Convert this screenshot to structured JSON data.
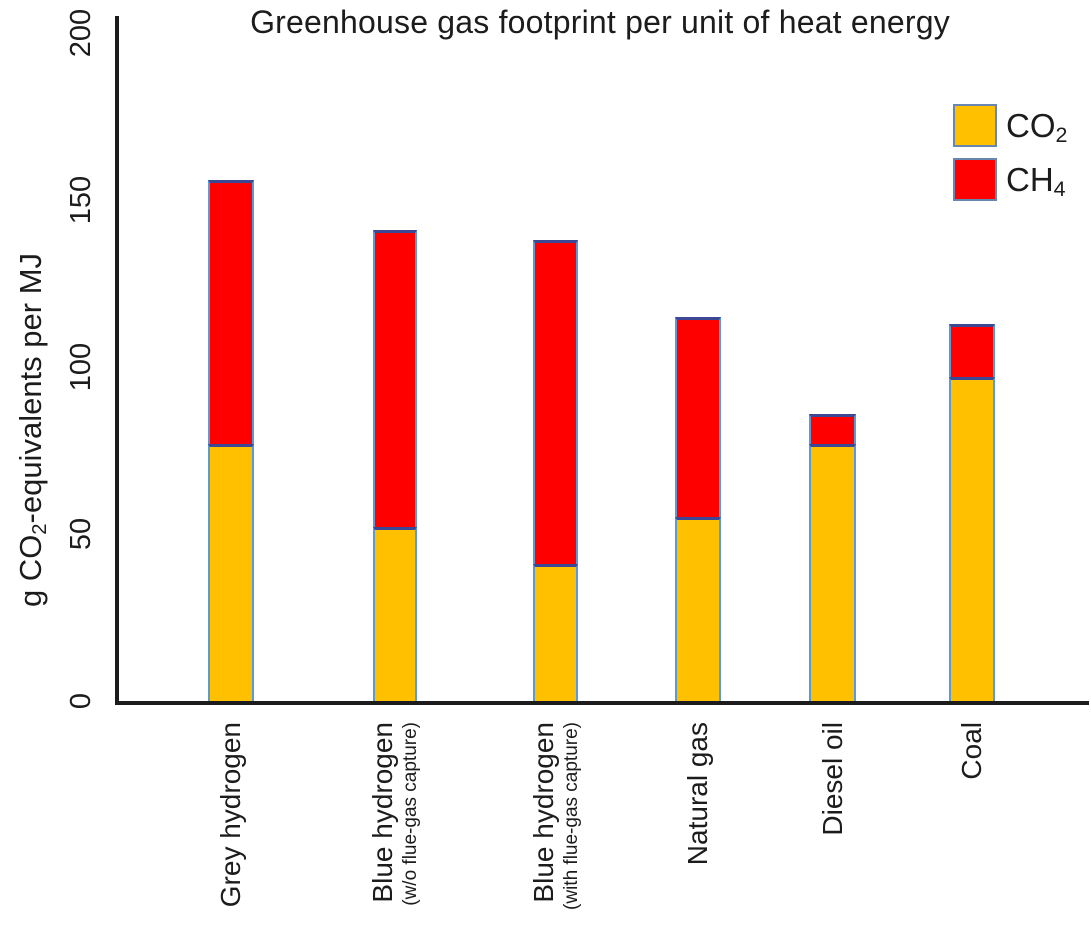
{
  "title": "Greenhouse gas footprint per unit of heat energy",
  "chart_data": {
    "type": "bar",
    "stacked": true,
    "title": "Greenhouse gas footprint per unit of heat energy",
    "xlabel": "",
    "ylabel": "g CO2-equivalents per MJ",
    "ylabel_parts": {
      "pre": "g CO",
      "sub": "2",
      "post": "-equivalents per MJ"
    },
    "ylim": [
      0,
      200
    ],
    "yticks": [
      0,
      50,
      100,
      150,
      200
    ],
    "grid": false,
    "legend_position": "top-right",
    "categories": [
      "Grey hydrogen",
      "Blue hydrogen",
      "Blue hydrogen",
      "Natural gas",
      "Diesel oil",
      "Coal"
    ],
    "category_sublabels": [
      "",
      "(w/o flue-gas capture)",
      "(with flue-gas capture)",
      "",
      "",
      ""
    ],
    "series": [
      {
        "name": "CO2",
        "color": "#FFC000",
        "values": [
          77,
          52,
          41,
          55,
          77,
          97
        ]
      },
      {
        "name": "CH4",
        "color": "#FF0000",
        "values": [
          79,
          89,
          97,
          60,
          9,
          16
        ]
      }
    ],
    "totals": [
      156,
      141,
      138,
      115,
      86,
      113
    ],
    "legend": [
      {
        "label": {
          "text": "CO",
          "sub": "2"
        },
        "color": "#FFC000"
      },
      {
        "label": {
          "text": "CH",
          "sub": "4"
        },
        "color": "#FF0000"
      }
    ]
  },
  "colors": {
    "co2_fill": "#FFC000",
    "ch4_fill": "#FF0000",
    "bar_outline": "#5B9BD5",
    "segment_divider": "#3D4894",
    "axis": "#1c1c1c",
    "background": "#ffffff"
  }
}
